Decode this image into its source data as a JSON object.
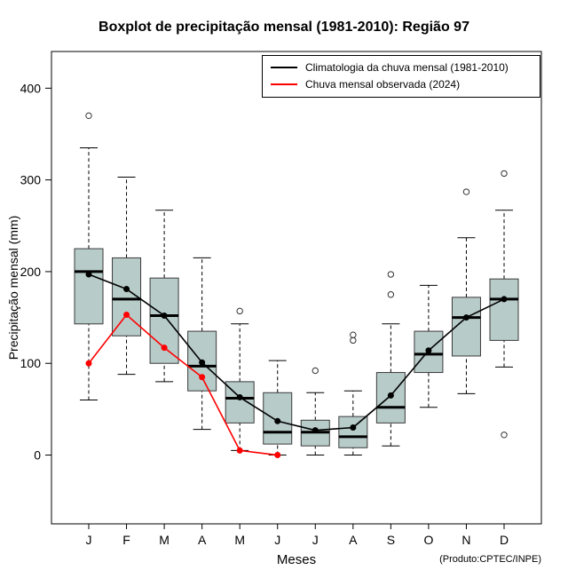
{
  "chart_data": {
    "type": "boxplot",
    "title": "Boxplot de precipitação mensal (1981-2010): Região 97",
    "xlabel": "Meses",
    "ylabel": "Precipitação mensal (mm)",
    "footnote": "(Produto:CPTEC/INPE)",
    "categories": [
      "J",
      "F",
      "M",
      "A",
      "M",
      "J",
      "J",
      "A",
      "S",
      "O",
      "N",
      "D"
    ],
    "ylim": [
      -75,
      440
    ],
    "yticks": [
      0,
      100,
      200,
      300,
      400
    ],
    "grid": false,
    "legend_position": "top-right",
    "box_fill": "#b7cbc8",
    "box_stroke": "#3a3a3a",
    "boxes": [
      {
        "low": 60,
        "q1": 143,
        "median": 200,
        "q3": 225,
        "high": 335,
        "outliers": [
          370
        ]
      },
      {
        "low": 88,
        "q1": 130,
        "median": 170,
        "q3": 215,
        "high": 303,
        "outliers": []
      },
      {
        "low": 80,
        "q1": 100,
        "median": 152,
        "q3": 193,
        "high": 267,
        "outliers": []
      },
      {
        "low": 28,
        "q1": 70,
        "median": 97,
        "q3": 135,
        "high": 215,
        "outliers": []
      },
      {
        "low": 5,
        "q1": 35,
        "median": 62,
        "q3": 80,
        "high": 143,
        "outliers": [
          157
        ]
      },
      {
        "low": 0,
        "q1": 12,
        "median": 25,
        "q3": 68,
        "high": 103,
        "outliers": []
      },
      {
        "low": 0,
        "q1": 10,
        "median": 25,
        "q3": 38,
        "high": 68,
        "outliers": [
          92
        ]
      },
      {
        "low": 0,
        "q1": 8,
        "median": 20,
        "q3": 42,
        "high": 70,
        "outliers": [
          125,
          131
        ]
      },
      {
        "low": 10,
        "q1": 35,
        "median": 52,
        "q3": 90,
        "high": 143,
        "outliers": [
          175,
          197
        ]
      },
      {
        "low": 52,
        "q1": 90,
        "median": 110,
        "q3": 135,
        "high": 185,
        "outliers": []
      },
      {
        "low": 67,
        "q1": 108,
        "median": 150,
        "q3": 172,
        "high": 237,
        "outliers": [
          287
        ]
      },
      {
        "low": 96,
        "q1": 125,
        "median": 170,
        "q3": 192,
        "high": 267,
        "outliers": [
          307,
          22
        ]
      }
    ],
    "series": [
      {
        "name": "Climatologia da chuva mensal (1981-2010)",
        "color": "#000000",
        "values": [
          197,
          181,
          152,
          101,
          63,
          37,
          27,
          30,
          65,
          114,
          150,
          170
        ]
      },
      {
        "name": "Chuva mensal observada (2024)",
        "color": "#ff0000",
        "values": [
          100,
          153,
          117,
          85,
          5,
          0,
          null,
          null,
          null,
          null,
          null,
          null
        ]
      }
    ]
  }
}
